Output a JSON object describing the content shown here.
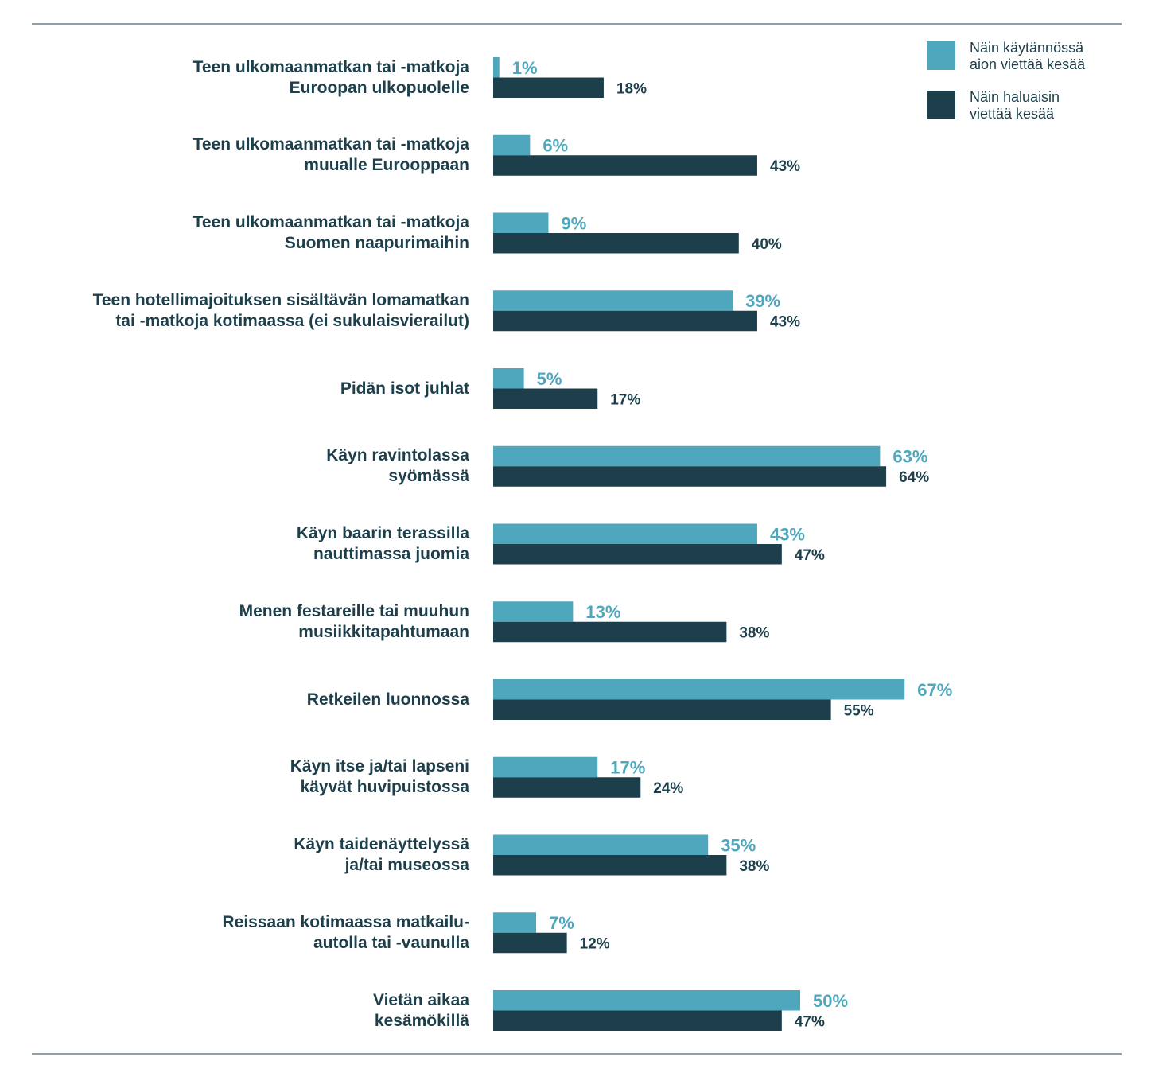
{
  "chart_data": {
    "type": "hbar",
    "categories": [
      "Teen ulkomaanmatkan tai -matkoja\nEuroopan ulkopuolelle",
      "Teen ulkomaanmatkan tai -matkoja\nmuualle Eurooppaan",
      "Teen ulkomaanmatkan tai -matkoja\nSuomen naapurimaihin",
      "Teen hotellimajoituksen sisältävän lomamatkan\ntai -matkoja kotimaassa (ei sukulaisvierailut)",
      "Pidän isot juhlat",
      "Käyn ravintolassa\nsyömässä",
      "Käyn baarin terassilla\nnauttimassa juomia",
      "Menen festareille tai muuhun\nmusiikkitapahtumaan",
      "Retkeilen luonnossa",
      "Käyn itse ja/tai lapseni\nkäyvät huvipuistossa",
      "Käyn taidenäyttelyssä\nja/tai museossa",
      "Reissaan kotimaassa matkailu-\nautolla tai -vaunulla",
      "Vietän aikaa\nkesämökillä"
    ],
    "series": [
      {
        "name": "Näin käytännössä\naion viettää kesää",
        "color": "#4ea7bc",
        "values": [
          1,
          6,
          9,
          39,
          5,
          63,
          43,
          13,
          67,
          17,
          35,
          7,
          50
        ],
        "value_labels": [
          "1%",
          "6%",
          "9%",
          "39%",
          "5%",
          "63%",
          "43%",
          "13%",
          "67%",
          "17%",
          "35%",
          "7%",
          "50%"
        ]
      },
      {
        "name": "Näin haluaisin\nviettää kesää",
        "color": "#1d3f4b",
        "values": [
          18,
          43,
          40,
          43,
          17,
          64,
          47,
          38,
          55,
          24,
          38,
          12,
          47
        ],
        "value_labels": [
          "18%",
          "43%",
          "40%",
          "43%",
          "17%",
          "64%",
          "47%",
          "38%",
          "55%",
          "24%",
          "38%",
          "12%",
          "47%"
        ]
      }
    ],
    "xlim": [
      0,
      100
    ]
  }
}
